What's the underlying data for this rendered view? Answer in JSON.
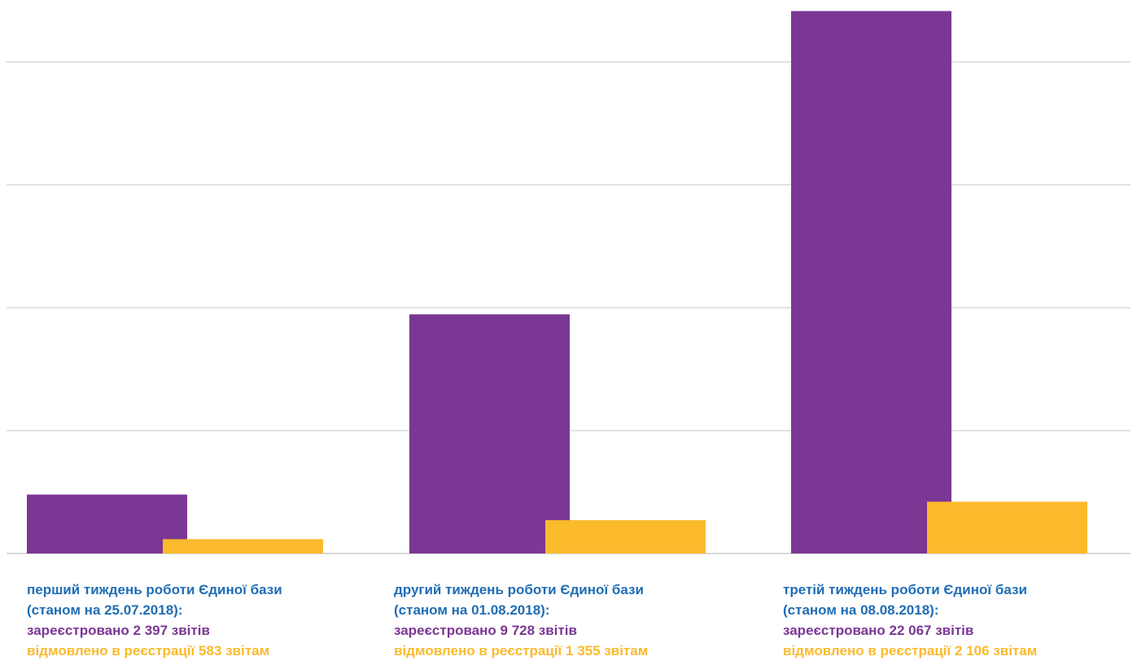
{
  "chart_data": {
    "type": "bar",
    "categories": [
      {
        "line1": "перший тиждень роботи Єдиної бази",
        "line2": "(станом на 25.07.2018):",
        "line3": "зареєстровано 2 397 звітів",
        "line4": "відмовлено в реєстрації 583 звітам"
      },
      {
        "line1": "другий тиждень роботи Єдиної бази",
        "line2": "(станом на 01.08.2018):",
        "line3": "зареєстровано 9 728 звітів",
        "line4": "відмовлено в реєстрації 1 355 звітам"
      },
      {
        "line1": "третій тиждень роботи Єдиної бази",
        "line2": "(станом на 08.08.2018):",
        "line3": "зареєстровано 22 067 звітів",
        "line4": "відмовлено в реєстрації 2 106 звітам"
      }
    ],
    "series": [
      {
        "values": [
          2397,
          9728,
          22067
        ],
        "color": "#7b3794"
      },
      {
        "values": [
          583,
          1355,
          2106
        ],
        "color": "#fbba2c"
      }
    ],
    "ylim": [
      0,
      22000
    ],
    "grid": true,
    "legend": "none"
  },
  "colors": {
    "label_title": "#1f6db5",
    "registered": "#7b3794",
    "rejected": "#fbba2c",
    "gridline": "#d9d9d9"
  }
}
